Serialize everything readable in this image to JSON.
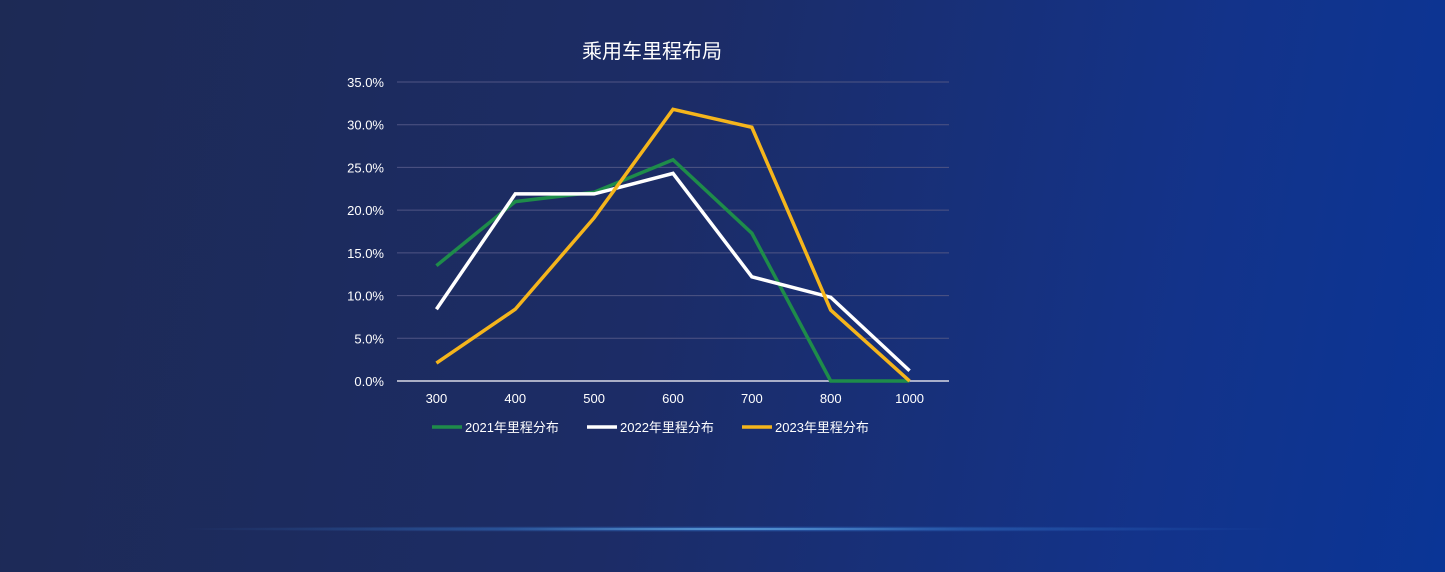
{
  "chart_data": {
    "type": "line",
    "title": "乘用车里程布局",
    "categories": [
      "300",
      "400",
      "500",
      "600",
      "700",
      "800",
      "1000"
    ],
    "y_tick_labels": [
      "0.0%",
      "5.0%",
      "10.0%",
      "15.0%",
      "20.0%",
      "25.0%",
      "30.0%",
      "35.0%"
    ],
    "ylim": [
      0,
      35
    ],
    "grid": true,
    "legend_position": "bottom",
    "series": [
      {
        "name": "2021年里程分布",
        "color": "#1e8c4a",
        "values": [
          13.5,
          21.0,
          22.1,
          25.9,
          17.3,
          0.0,
          0.0
        ]
      },
      {
        "name": "2022年里程分布",
        "color": "#ffffff",
        "values": [
          8.4,
          21.9,
          21.9,
          24.3,
          12.2,
          9.8,
          1.2
        ]
      },
      {
        "name": "2023年里程分布",
        "color": "#f5b51c",
        "values": [
          2.1,
          8.4,
          19.1,
          31.8,
          29.7,
          8.3,
          0.0
        ]
      }
    ]
  }
}
